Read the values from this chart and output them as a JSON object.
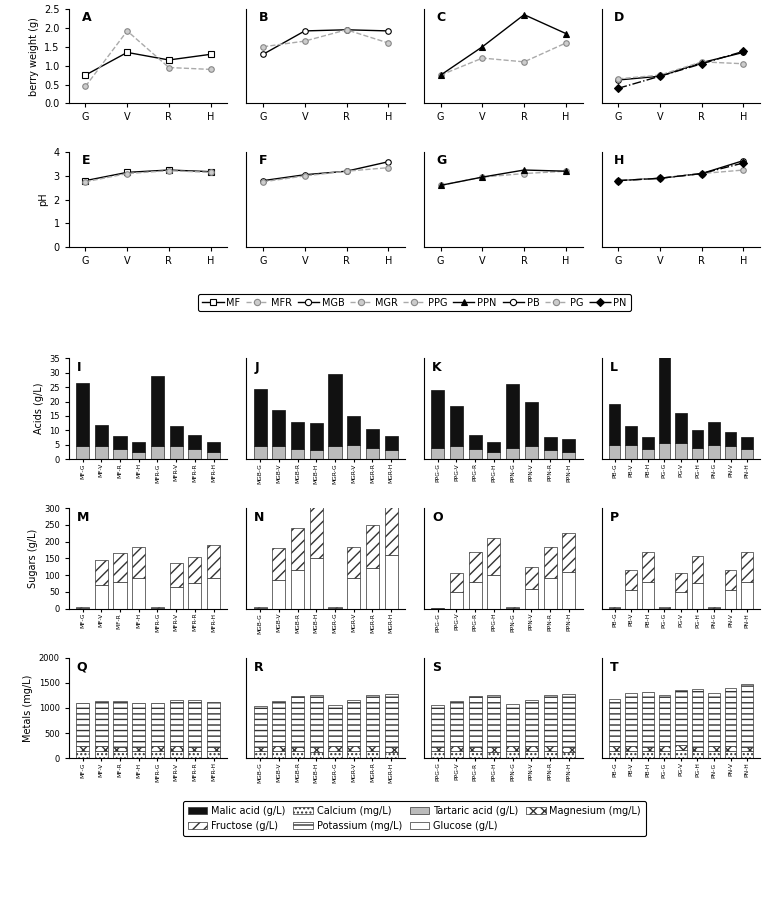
{
  "line_plots": {
    "A": {
      "title": "A",
      "ylabel": "berry weight (g)",
      "ylim": [
        0.0,
        2.5
      ],
      "yticks": [
        0.0,
        0.5,
        1.0,
        1.5,
        2.0,
        2.5
      ],
      "series": {
        "MF": [
          0.75,
          1.35,
          1.15,
          1.3
        ],
        "MFR": [
          0.45,
          1.92,
          0.95,
          0.9
        ]
      },
      "styles": {
        "MF": {
          "marker": "s",
          "color": "#000000",
          "linestyle": "-",
          "markersize": 4,
          "mfc": "white",
          "mec": "#000000"
        },
        "MFR": {
          "marker": "o",
          "color": "#aaaaaa",
          "linestyle": "--",
          "markersize": 4,
          "mfc": "#cccccc",
          "mec": "#888888"
        }
      }
    },
    "B": {
      "title": "B",
      "ylim": [
        0.0,
        2.5
      ],
      "yticks": [
        0.0,
        0.5,
        1.0,
        1.5,
        2.0,
        2.5
      ],
      "series": {
        "MGB": [
          1.3,
          1.92,
          1.95,
          1.92
        ],
        "MGR": [
          1.5,
          1.65,
          1.95,
          1.6
        ]
      },
      "styles": {
        "MGB": {
          "marker": "o",
          "color": "#000000",
          "linestyle": "-",
          "markersize": 4,
          "mfc": "white",
          "mec": "#000000"
        },
        "MGR": {
          "marker": "o",
          "color": "#aaaaaa",
          "linestyle": "--",
          "markersize": 4,
          "mfc": "#cccccc",
          "mec": "#888888"
        }
      }
    },
    "C": {
      "title": "C",
      "ylim": [
        0.0,
        2.5
      ],
      "yticks": [
        0.0,
        0.5,
        1.0,
        1.5,
        2.0,
        2.5
      ],
      "series": {
        "PPG": [
          0.75,
          1.2,
          1.1,
          1.6
        ],
        "PPN": [
          0.75,
          1.5,
          2.35,
          1.85
        ]
      },
      "styles": {
        "PPG": {
          "marker": "o",
          "color": "#aaaaaa",
          "linestyle": "--",
          "markersize": 4,
          "mfc": "#cccccc",
          "mec": "#888888"
        },
        "PPN": {
          "marker": "^",
          "color": "#000000",
          "linestyle": "-",
          "markersize": 5,
          "mfc": "#000000",
          "mec": "#000000"
        }
      }
    },
    "D": {
      "title": "D",
      "ylim": [
        0.0,
        2.5
      ],
      "yticks": [
        0.0,
        0.5,
        1.0,
        1.5,
        2.0,
        2.5
      ],
      "series": {
        "PB": [
          0.62,
          0.72,
          1.08,
          1.35
        ],
        "PG": [
          0.65,
          0.75,
          1.1,
          1.05
        ],
        "PN": [
          0.4,
          0.72,
          1.05,
          1.38
        ]
      },
      "styles": {
        "PB": {
          "marker": "o",
          "color": "#000000",
          "linestyle": "-",
          "markersize": 4,
          "mfc": "white",
          "mec": "#000000"
        },
        "PG": {
          "marker": "o",
          "color": "#aaaaaa",
          "linestyle": "--",
          "markersize": 4,
          "mfc": "#cccccc",
          "mec": "#888888"
        },
        "PN": {
          "marker": "D",
          "color": "#000000",
          "linestyle": "-.",
          "markersize": 4,
          "mfc": "#000000",
          "mec": "#000000"
        }
      }
    },
    "E": {
      "title": "E",
      "ylabel": "pH",
      "ylim": [
        0.0,
        4.0
      ],
      "yticks": [
        0.0,
        1.0,
        2.0,
        3.0,
        4.0
      ],
      "series": {
        "MF": [
          2.8,
          3.15,
          3.25,
          3.18
        ],
        "MFR": [
          2.75,
          3.1,
          3.22,
          3.15
        ]
      },
      "styles": {
        "MF": {
          "marker": "s",
          "color": "#000000",
          "linestyle": "-",
          "markersize": 4,
          "mfc": "white",
          "mec": "#000000"
        },
        "MFR": {
          "marker": "o",
          "color": "#aaaaaa",
          "linestyle": "--",
          "markersize": 4,
          "mfc": "#cccccc",
          "mec": "#888888"
        }
      }
    },
    "F": {
      "title": "F",
      "ylim": [
        0.0,
        4.0
      ],
      "yticks": [
        0.0,
        1.0,
        2.0,
        3.0,
        4.0
      ],
      "series": {
        "MGB": [
          2.8,
          3.05,
          3.2,
          3.6
        ],
        "MGR": [
          2.75,
          3.0,
          3.2,
          3.35
        ]
      },
      "styles": {
        "MGB": {
          "marker": "o",
          "color": "#000000",
          "linestyle": "-",
          "markersize": 4,
          "mfc": "white",
          "mec": "#000000"
        },
        "MGR": {
          "marker": "o",
          "color": "#aaaaaa",
          "linestyle": "--",
          "markersize": 4,
          "mfc": "#cccccc",
          "mec": "#888888"
        }
      }
    },
    "G": {
      "title": "G",
      "ylim": [
        0.0,
        4.0
      ],
      "yticks": [
        0.0,
        1.0,
        2.0,
        3.0,
        4.0
      ],
      "series": {
        "PPG": [
          2.6,
          2.95,
          3.1,
          3.2
        ],
        "PPN": [
          2.6,
          2.95,
          3.25,
          3.2
        ]
      },
      "styles": {
        "PPG": {
          "marker": "o",
          "color": "#aaaaaa",
          "linestyle": "--",
          "markersize": 4,
          "mfc": "#cccccc",
          "mec": "#888888"
        },
        "PPN": {
          "marker": "^",
          "color": "#000000",
          "linestyle": "-",
          "markersize": 5,
          "mfc": "#000000",
          "mec": "#000000"
        }
      }
    },
    "H": {
      "title": "H",
      "ylim": [
        0.0,
        4.0
      ],
      "yticks": [
        0.0,
        1.0,
        2.0,
        3.0,
        4.0
      ],
      "series": {
        "PB": [
          2.8,
          2.9,
          3.1,
          3.65
        ],
        "PG": [
          2.8,
          2.9,
          3.1,
          3.25
        ],
        "PN": [
          2.8,
          2.9,
          3.1,
          3.55
        ]
      },
      "styles": {
        "PB": {
          "marker": "o",
          "color": "#000000",
          "linestyle": "-",
          "markersize": 4,
          "mfc": "white",
          "mec": "#000000"
        },
        "PG": {
          "marker": "o",
          "color": "#aaaaaa",
          "linestyle": "--",
          "markersize": 4,
          "mfc": "#cccccc",
          "mec": "#888888"
        },
        "PN": {
          "marker": "D",
          "color": "#000000",
          "linestyle": "-.",
          "markersize": 4,
          "mfc": "#000000",
          "mec": "#000000"
        }
      }
    }
  },
  "legend_lines": [
    {
      "name": "MF",
      "marker": "s",
      "color": "#000000",
      "linestyle": "-",
      "mfc": "white",
      "mec": "#000000"
    },
    {
      "name": "MFR",
      "marker": "o",
      "color": "#aaaaaa",
      "linestyle": "--",
      "mfc": "#cccccc",
      "mec": "#888888"
    },
    {
      "name": "MGB",
      "marker": "o",
      "color": "#000000",
      "linestyle": "-",
      "mfc": "white",
      "mec": "#000000"
    },
    {
      "name": "MGR",
      "marker": "o",
      "color": "#aaaaaa",
      "linestyle": "--",
      "mfc": "#cccccc",
      "mec": "#888888"
    },
    {
      "name": "PPG",
      "marker": "o",
      "color": "#aaaaaa",
      "linestyle": "--",
      "mfc": "#cccccc",
      "mec": "#888888"
    },
    {
      "name": "PPN",
      "marker": "^",
      "color": "#000000",
      "linestyle": "-",
      "mfc": "#000000",
      "mec": "#000000"
    },
    {
      "name": "PB",
      "marker": "o",
      "color": "#000000",
      "linestyle": "-",
      "mfc": "white",
      "mec": "#000000"
    },
    {
      "name": "PG",
      "marker": "o",
      "color": "#aaaaaa",
      "linestyle": "--",
      "mfc": "#cccccc",
      "mec": "#888888"
    },
    {
      "name": "PN",
      "marker": "D",
      "color": "#000000",
      "linestyle": "-.",
      "mfc": "#000000",
      "mec": "#000000"
    }
  ],
  "bar_acids": {
    "I": {
      "title": "I",
      "ylim": [
        0,
        35
      ],
      "yticks": [
        0,
        5,
        10,
        15,
        20,
        25,
        30,
        35
      ],
      "groups": [
        "MF-G",
        "MF-V",
        "MF-R",
        "MF-H",
        "MFR-G",
        "MFR-V",
        "MFR-R",
        "MFR-H"
      ],
      "malic": [
        22.0,
        7.5,
        4.5,
        3.5,
        24.5,
        7.0,
        5.0,
        3.5
      ],
      "tartaric": [
        4.5,
        4.5,
        3.5,
        2.5,
        4.5,
        4.5,
        3.5,
        2.5
      ]
    },
    "J": {
      "title": "J",
      "ylim": [
        0,
        35
      ],
      "yticks": [
        0,
        5,
        10,
        15,
        20,
        25,
        30,
        35
      ],
      "groups": [
        "MGB-G",
        "MGB-V",
        "MGB-R",
        "MGB-H",
        "MGR-G",
        "MGR-V",
        "MGR-R",
        "MGR-H"
      ],
      "malic": [
        20.0,
        12.5,
        9.5,
        9.5,
        25.0,
        10.0,
        6.5,
        5.0
      ],
      "tartaric": [
        4.5,
        4.5,
        3.5,
        3.0,
        4.5,
        5.0,
        4.0,
        3.0
      ]
    },
    "K": {
      "title": "K",
      "ylim": [
        0,
        35
      ],
      "yticks": [
        0,
        5,
        10,
        15,
        20,
        25,
        30,
        35
      ],
      "groups": [
        "PPG-G",
        "PPG-V",
        "PPG-R",
        "PPG-H",
        "PPN-G",
        "PPN-V",
        "PPN-R",
        "PPN-H"
      ],
      "malic": [
        20.0,
        14.0,
        5.0,
        3.5,
        22.0,
        15.5,
        4.5,
        4.5
      ],
      "tartaric": [
        4.0,
        4.5,
        3.5,
        2.5,
        4.0,
        4.5,
        3.0,
        2.5
      ]
    },
    "L": {
      "title": "L",
      "ylim": [
        0,
        35
      ],
      "yticks": [
        0,
        5,
        10,
        15,
        20,
        25,
        30,
        35
      ],
      "groups": [
        "PB-G",
        "PB-V",
        "PB-H",
        "PG-G",
        "PG-V",
        "PG-H",
        "PN-G",
        "PN-V",
        "PN-H"
      ],
      "malic": [
        14.0,
        6.5,
        4.0,
        30.0,
        10.5,
        6.0,
        8.0,
        5.0,
        4.0
      ],
      "tartaric": [
        5.0,
        5.0,
        3.5,
        5.5,
        5.5,
        4.0,
        5.0,
        4.5,
        3.5
      ]
    }
  },
  "bar_sugars": {
    "M": {
      "title": "M",
      "ylim": [
        0,
        300
      ],
      "yticks": [
        0,
        50,
        100,
        150,
        200,
        250,
        300
      ],
      "groups": [
        "MF-G",
        "MF-V",
        "MF-R ",
        "MF-H",
        "MFR-G",
        "MFR-V",
        "MFR-R",
        "MFR-H"
      ],
      "glucose": [
        3,
        70,
        80,
        90,
        3,
        65,
        75,
        90
      ],
      "fructose": [
        3,
        75,
        85,
        95,
        3,
        70,
        80,
        100
      ]
    },
    "N": {
      "title": "N",
      "ylim": [
        0,
        300
      ],
      "yticks": [
        0,
        50,
        100,
        150,
        200,
        250,
        300
      ],
      "groups": [
        "MGB-G",
        "MGB-V",
        "MGB-R",
        "MGB-H",
        "MGR-G",
        "MGR-V",
        "MGR-R",
        "MGR-H"
      ],
      "glucose": [
        3,
        85,
        115,
        150,
        3,
        90,
        120,
        160
      ],
      "fructose": [
        3,
        95,
        125,
        165,
        3,
        95,
        130,
        170
      ]
    },
    "O": {
      "title": "O",
      "ylim": [
        0,
        300
      ],
      "yticks": [
        0,
        50,
        100,
        150,
        200,
        250,
        300
      ],
      "groups": [
        "PPG-G",
        "PPG-V",
        "PPG-R",
        "PPG-H",
        "PPN-G",
        "PPN-V",
        "PPN-R",
        "PPN-H"
      ],
      "glucose": [
        1,
        50,
        80,
        100,
        3,
        60,
        90,
        110
      ],
      "fructose": [
        1,
        55,
        90,
        110,
        3,
        65,
        95,
        115
      ]
    },
    "P": {
      "title": "P",
      "ylim": [
        0,
        300
      ],
      "yticks": [
        0,
        50,
        100,
        150,
        200,
        250,
        300
      ],
      "groups": [
        "PB-G",
        "PB-V",
        "PB-H",
        "PG-G",
        "PG-V",
        "PG-H",
        "PN-G",
        "PN-V",
        "PN-H"
      ],
      "glucose": [
        3,
        55,
        80,
        3,
        50,
        75,
        3,
        55,
        80
      ],
      "fructose": [
        3,
        60,
        90,
        3,
        55,
        82,
        3,
        60,
        88
      ]
    }
  },
  "bar_metals": {
    "Q": {
      "title": "Q",
      "ylim": [
        0,
        2000
      ],
      "yticks": [
        0,
        500,
        1000,
        1500,
        2000
      ],
      "groups": [
        "MF-G",
        "MF-V",
        "MF-R",
        "MF-H",
        "MFR-G",
        "MFR-V",
        "MFR-R",
        "MFR-H"
      ],
      "calcium": [
        150,
        150,
        140,
        135,
        150,
        150,
        140,
        135
      ],
      "magnesium": [
        90,
        95,
        90,
        85,
        90,
        95,
        90,
        85
      ],
      "potassium": [
        850,
        900,
        900,
        870,
        860,
        910,
        920,
        890
      ]
    },
    "R": {
      "title": "R",
      "ylim": [
        0,
        2000
      ],
      "yticks": [
        0,
        500,
        1000,
        1500,
        2000
      ],
      "groups": [
        "MGB-G",
        "MGB-V",
        "MGB-R",
        "MGB-H",
        "MGR-G",
        "MGR-V",
        "MGR-R",
        "MGR-H"
      ],
      "calcium": [
        140,
        145,
        140,
        130,
        145,
        150,
        145,
        130
      ],
      "magnesium": [
        90,
        95,
        90,
        85,
        92,
        98,
        92,
        85
      ],
      "potassium": [
        800,
        900,
        1000,
        1050,
        820,
        900,
        1010,
        1060
      ]
    },
    "S": {
      "title": "S",
      "ylim": [
        0,
        2000
      ],
      "yticks": [
        0,
        500,
        1000,
        1500,
        2000
      ],
      "groups": [
        "PPG-G",
        "PPG-V",
        "PPG-R",
        "PPG-H",
        "PPN-G",
        "PPN-V",
        "PPN-R",
        "PPN-H"
      ],
      "calcium": [
        140,
        145,
        140,
        130,
        145,
        150,
        145,
        130
      ],
      "magnesium": [
        90,
        95,
        90,
        85,
        92,
        98,
        92,
        85
      ],
      "potassium": [
        820,
        900,
        1000,
        1050,
        840,
        900,
        1010,
        1070
      ]
    },
    "T": {
      "title": "T",
      "ylim": [
        0,
        2000
      ],
      "yticks": [
        0,
        500,
        1000,
        1500,
        2000
      ],
      "groups": [
        "PB-G",
        "PB-V",
        "PB-H",
        "PG-G",
        "PG-V",
        "PG-H",
        "PN-G",
        "PN-V",
        "PN-H"
      ],
      "calcium": [
        145,
        150,
        135,
        150,
        155,
        135,
        148,
        148,
        135
      ],
      "magnesium": [
        92,
        100,
        88,
        98,
        105,
        88,
        95,
        100,
        88
      ],
      "potassium": [
        950,
        1050,
        1100,
        1000,
        1100,
        1150,
        1050,
        1150,
        1250
      ]
    }
  }
}
